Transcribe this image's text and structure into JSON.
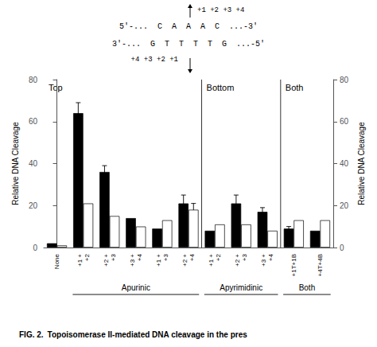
{
  "chart_data": {
    "type": "bar",
    "categories": [
      "None",
      "+1 +\n+2",
      "+2 +\n+3",
      "+3 +\n+4",
      "+1 +\n+3",
      "+2 +\n+4",
      "+1 +\n+2",
      "+2 +\n+3",
      "+3 +\n+4",
      "+1T+1B",
      "+4T+4B"
    ],
    "series": [
      {
        "color": "#000000",
        "values": [
          2,
          64,
          36,
          14,
          9,
          21,
          8,
          21,
          17,
          9,
          8
        ],
        "errors": [
          0,
          5,
          3,
          0,
          0,
          4,
          0,
          4,
          2,
          1,
          0
        ]
      },
      {
        "color": "#ffffff",
        "values": [
          1,
          21,
          15,
          10,
          13,
          18,
          11,
          11,
          8,
          13,
          13
        ],
        "errors": [
          0,
          0,
          0,
          0,
          0,
          3,
          0,
          0,
          0,
          0,
          0
        ]
      }
    ],
    "ylabel": "Relative DNA Cleavage",
    "y2label": "Relative DNA Cleavage",
    "ylim": [
      0,
      80
    ],
    "yticks": [
      0,
      20,
      40,
      60,
      80
    ],
    "y2lim": [
      0,
      80
    ],
    "y2ticks": [
      0,
      20,
      40,
      60,
      80
    ],
    "dividers": [
      5.5,
      8.5
    ],
    "section_labels": [
      "Top",
      "Bottom",
      "Both"
    ],
    "group_labels": [
      "Apurinic",
      "Apyrimidinic",
      "Both"
    ],
    "sequence_labels": [
      "+1 +2 +3 +4",
      "5'-...  C  A  A  A  C  ...-3'",
      "3'-...  G  T  T  T  T  G  ...-5'",
      "+4 +3 +2 +1"
    ],
    "caption": "FIG. 2. Topoisomerase II-mediated DNA cleavage in the pres",
    "grid": false
  }
}
